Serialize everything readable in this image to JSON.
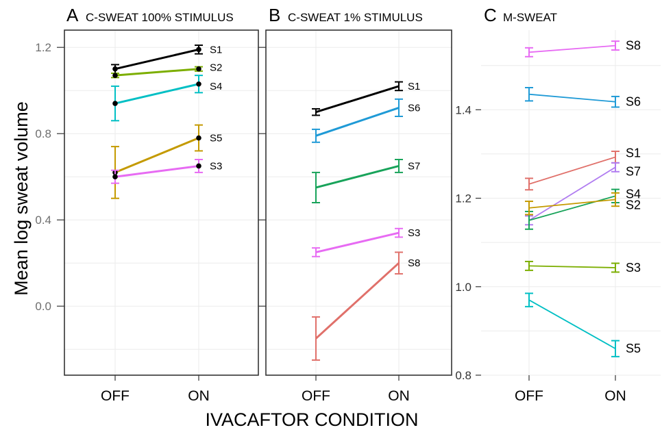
{
  "ylabel": "Mean log sweat volume",
  "xlabel": "IVACAFTOR CONDITION",
  "chart_data": [
    {
      "type": "line",
      "panel": "A",
      "title": "C-SWEAT 100% STIMULUS",
      "categories": [
        "OFF",
        "ON"
      ],
      "ylim": [
        -0.32,
        1.28
      ],
      "yticks": [
        "0.0",
        "0.4",
        "0.8",
        "1.2"
      ],
      "ytick_values": [
        0.0,
        0.4,
        0.8,
        1.2
      ],
      "markers": true,
      "series": [
        {
          "name": "S1",
          "color": "#000000",
          "values": [
            1.1,
            1.19
          ],
          "err": [
            0.02,
            0.02
          ]
        },
        {
          "name": "S2",
          "color": "#7cae00",
          "values": [
            1.07,
            1.1
          ],
          "err": [
            0.01,
            0.01
          ]
        },
        {
          "name": "S4",
          "color": "#00bfc4",
          "values": [
            0.94,
            1.03
          ],
          "err": [
            0.08,
            0.04
          ]
        },
        {
          "name": "S5",
          "color": "#c49a00",
          "values": [
            0.62,
            0.78
          ],
          "err": [
            0.12,
            0.06
          ]
        },
        {
          "name": "S3",
          "color": "#e76bf3",
          "values": [
            0.6,
            0.65
          ],
          "err": [
            0.03,
            0.03
          ]
        }
      ]
    },
    {
      "type": "line",
      "panel": "B",
      "title": "C-SWEAT 1% STIMULUS",
      "categories": [
        "OFF",
        "ON"
      ],
      "ylim": [
        -0.32,
        1.28
      ],
      "yticks": [],
      "markers": false,
      "series": [
        {
          "name": "S1",
          "color": "#000000",
          "values": [
            0.9,
            1.02
          ],
          "err": [
            0.015,
            0.02
          ]
        },
        {
          "name": "S6",
          "color": "#1f9ad6",
          "values": [
            0.79,
            0.92
          ],
          "err": [
            0.03,
            0.04
          ]
        },
        {
          "name": "S7",
          "color": "#18a35a",
          "values": [
            0.55,
            0.65
          ],
          "err": [
            0.07,
            0.03
          ]
        },
        {
          "name": "S3",
          "color": "#e76bf3",
          "values": [
            0.25,
            0.34
          ],
          "err": [
            0.02,
            0.02
          ]
        },
        {
          "name": "S8",
          "color": "#e0706a",
          "values": [
            -0.15,
            0.2
          ],
          "err": [
            0.1,
            0.05
          ]
        }
      ]
    },
    {
      "type": "line",
      "panel": "C",
      "title": "M-SWEAT",
      "categories": [
        "OFF",
        "ON"
      ],
      "ylim": [
        0.8,
        1.58
      ],
      "yticks": [
        "0.8",
        "1.0",
        "1.2",
        "1.4"
      ],
      "ytick_values": [
        0.8,
        1.0,
        1.2,
        1.4
      ],
      "markers": false,
      "series": [
        {
          "name": "S8",
          "color": "#e76bf3",
          "values": [
            1.53,
            1.545
          ],
          "err": [
            0.01,
            0.01
          ]
        },
        {
          "name": "S6",
          "color": "#1f9ad6",
          "values": [
            1.435,
            1.418
          ],
          "err": [
            0.015,
            0.012
          ]
        },
        {
          "name": "S1",
          "color": "#e0706a",
          "values": [
            1.232,
            1.293
          ],
          "err": [
            0.013,
            0.013
          ]
        },
        {
          "name": "S7",
          "color": "#b07cf0",
          "values": [
            1.15,
            1.27
          ],
          "err": [
            0.01,
            0.01
          ]
        },
        {
          "name": "S4",
          "color": "#18a35a",
          "values": [
            1.15,
            1.205
          ],
          "err": [
            0.02,
            0.015
          ]
        },
        {
          "name": "S2",
          "color": "#c49a00",
          "values": [
            1.178,
            1.197
          ],
          "err": [
            0.015,
            0.015
          ]
        },
        {
          "name": "S3",
          "color": "#7cae00",
          "values": [
            1.047,
            1.043
          ],
          "err": [
            0.01,
            0.01
          ]
        },
        {
          "name": "S5",
          "color": "#00bfc4",
          "values": [
            0.97,
            0.86
          ],
          "err": [
            0.015,
            0.018
          ]
        }
      ]
    }
  ]
}
